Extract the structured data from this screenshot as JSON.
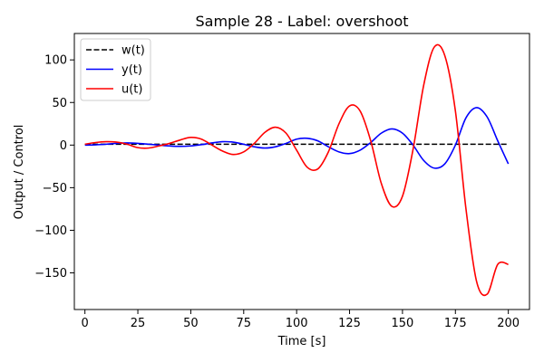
{
  "chart_data": {
    "type": "line",
    "title": "Sample 28 - Label: overshoot",
    "xlabel": "Time [s]",
    "ylabel": "Output / Control",
    "xlim": [
      -5,
      210
    ],
    "ylim": [
      -193,
      131
    ],
    "x_ticks": [
      0,
      25,
      50,
      75,
      100,
      125,
      150,
      175,
      200
    ],
    "x_tick_labels": [
      "0",
      "25",
      "50",
      "75",
      "100",
      "125",
      "150",
      "175",
      "200"
    ],
    "y_ticks": [
      100,
      50,
      0,
      -50,
      -100,
      -150
    ],
    "y_tick_labels": [
      "100",
      "50",
      "0",
      "−50",
      "−100",
      "−150"
    ],
    "grid": false,
    "legend_position": "upper-left",
    "x": [
      0,
      5,
      10,
      15,
      20,
      25,
      30,
      35,
      40,
      45,
      50,
      55,
      60,
      65,
      70,
      75,
      80,
      85,
      90,
      95,
      100,
      105,
      110,
      115,
      120,
      125,
      130,
      135,
      140,
      145,
      150,
      155,
      160,
      165,
      170,
      175,
      180,
      185,
      190,
      195,
      200
    ],
    "series": [
      {
        "name": "w(t)",
        "color": "#000000",
        "dash": "dashed",
        "values": [
          1,
          1,
          1,
          1,
          1,
          1,
          1,
          1,
          1,
          1,
          1,
          1,
          1,
          1,
          1,
          1,
          1,
          1,
          1,
          1,
          1,
          1,
          1,
          1,
          1,
          1,
          1,
          1,
          1,
          1,
          1,
          1,
          1,
          1,
          1,
          1,
          1,
          1,
          1,
          1,
          1
        ]
      },
      {
        "name": "y(t)",
        "color": "#0000ff",
        "dash": "solid",
        "values": [
          0,
          0.3,
          1,
          2,
          2.5,
          2,
          1,
          0,
          -1,
          -1.5,
          -1,
          0.5,
          2.5,
          4,
          3.5,
          1,
          -2,
          -3.5,
          -2,
          2,
          7,
          8,
          5,
          -2,
          -8,
          -10,
          -6,
          3,
          14,
          19,
          14,
          0,
          -18,
          -27,
          -22,
          0,
          32,
          44,
          33,
          5,
          -22
        ]
      },
      {
        "name": "u(t)",
        "color": "#ff0000",
        "dash": "solid",
        "values": [
          1,
          3,
          4,
          3.5,
          1,
          -3,
          -3.5,
          -1,
          2,
          6,
          9,
          7,
          0,
          -7,
          -11,
          -8,
          2,
          15,
          21,
          14,
          -6,
          -26,
          -28,
          -8,
          25,
          46,
          40,
          5,
          -45,
          -72,
          -60,
          -5,
          70,
          115,
          105,
          40,
          -75,
          -160,
          -175,
          -140,
          -140
        ]
      }
    ]
  }
}
